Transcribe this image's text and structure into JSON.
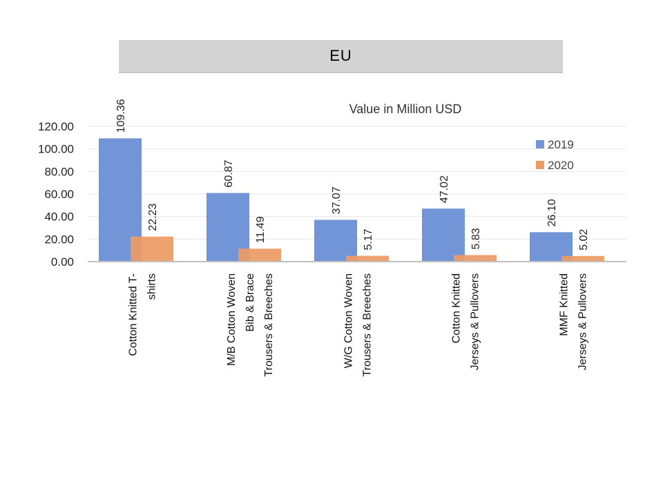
{
  "banner": {
    "title": "EU"
  },
  "chart_data": {
    "type": "bar",
    "title": "Value in Million USD",
    "xlabel": "",
    "ylabel": "",
    "ylim": [
      0,
      120
    ],
    "yticks": [
      "0.00",
      "20.00",
      "40.00",
      "60.00",
      "80.00",
      "100.00",
      "120.00"
    ],
    "legend_position": "right",
    "grid": true,
    "categories": [
      [
        "Cotton  Knitted  T-",
        "shirts"
      ],
      [
        "M/B Cotton Woven",
        "Bib & Brace",
        "Trousers & Breeches"
      ],
      [
        "W/G Cotton Woven",
        "Trousers & Breeches"
      ],
      [
        "Cotton  Knitted",
        "Jerseys & Pullovers"
      ],
      [
        "MMF Knitted",
        "Jerseys & Pullovers"
      ]
    ],
    "series": [
      {
        "name": "2019",
        "color": "#7295d8",
        "values": [
          109.36,
          60.87,
          37.07,
          47.02,
          26.1
        ],
        "labels": [
          "109.36",
          "60.87",
          "37.07",
          "47.02",
          "26.10"
        ]
      },
      {
        "name": "2020",
        "color": "#ed9a63",
        "values": [
          22.23,
          11.49,
          5.17,
          5.83,
          5.02
        ],
        "labels": [
          "22.23",
          "11.49",
          "5.17",
          "5.83",
          "5.02"
        ]
      }
    ]
  }
}
